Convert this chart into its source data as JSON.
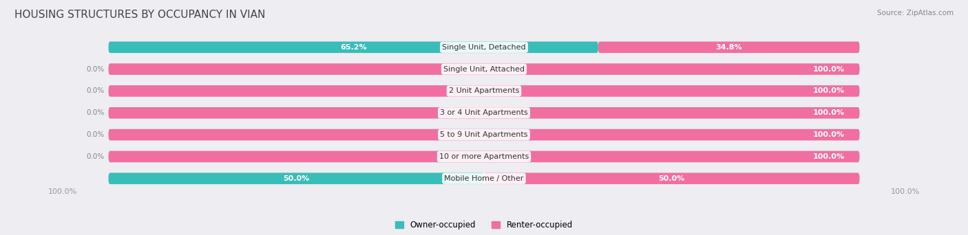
{
  "title": "HOUSING STRUCTURES BY OCCUPANCY IN VIAN",
  "source_text": "Source: ZipAtlas.com",
  "categories": [
    "Single Unit, Detached",
    "Single Unit, Attached",
    "2 Unit Apartments",
    "3 or 4 Unit Apartments",
    "5 to 9 Unit Apartments",
    "10 or more Apartments",
    "Mobile Home / Other"
  ],
  "owner_pct": [
    65.2,
    0.0,
    0.0,
    0.0,
    0.0,
    0.0,
    50.0
  ],
  "renter_pct": [
    34.8,
    100.0,
    100.0,
    100.0,
    100.0,
    100.0,
    50.0
  ],
  "owner_color": "#39bdb8",
  "renter_color": "#f06fa0",
  "bg_color": "#ededf2",
  "bar_bg_color": "#e0e0e8",
  "title_fontsize": 11,
  "label_fontsize": 8,
  "bar_height": 0.52,
  "figsize": [
    14.06,
    3.42
  ]
}
